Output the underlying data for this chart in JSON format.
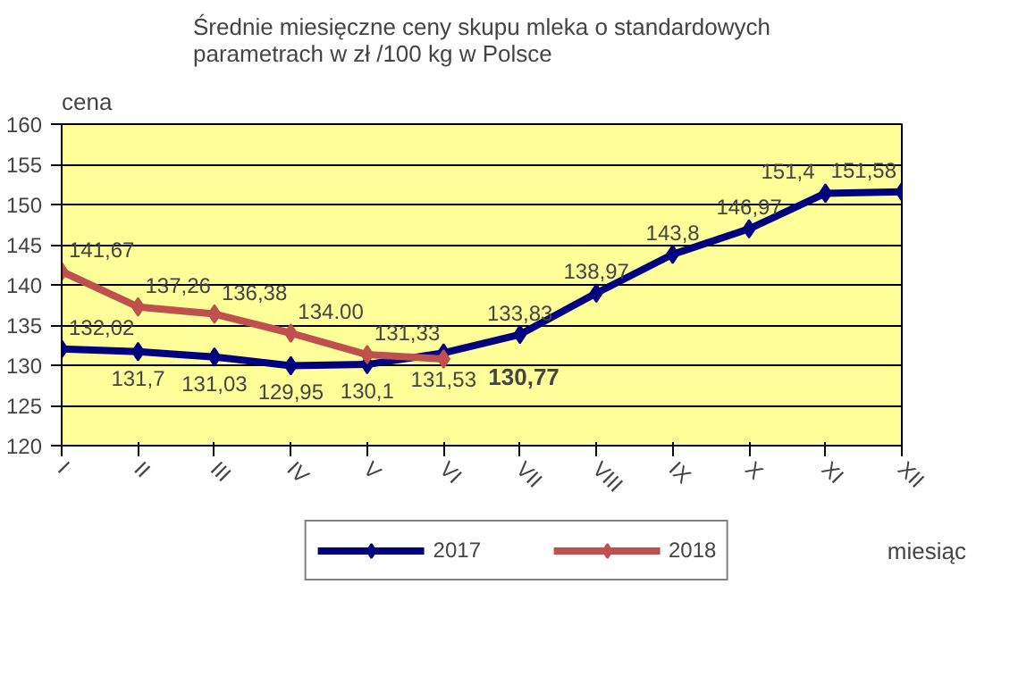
{
  "chart_data": {
    "type": "line",
    "title": "Średnie miesięczne ceny skupu mleka o standardowych\nparametrach w zł /100 kg w Polsce",
    "ylabel": "cena",
    "xlabel": "miesiąc",
    "categories": [
      "I",
      "II",
      "III",
      "IV",
      "V",
      "VI",
      "VII",
      "VIII",
      "IX",
      "X",
      "XI",
      "XII"
    ],
    "series": [
      {
        "name": "2017",
        "color": "#000080",
        "values": [
          132.02,
          131.7,
          131.03,
          129.95,
          130.1,
          131.53,
          133.83,
          138.97,
          143.8,
          146.97,
          151.4,
          151.58
        ],
        "value_labels": [
          "132,02",
          "131,7",
          "131,03",
          "129,95",
          "130,1",
          "131,53",
          "133,83",
          "138,97",
          "143,8",
          "146,97",
          "151,4",
          "151,58"
        ]
      },
      {
        "name": "2018",
        "color": "#c0504d",
        "values": [
          141.67,
          137.26,
          136.38,
          134.0,
          131.33,
          130.77,
          null,
          null,
          null,
          null,
          null,
          null
        ],
        "value_labels": [
          "141,67",
          "137,26",
          "136,38",
          "134.00",
          "131,33",
          "130,77",
          null,
          null,
          null,
          null,
          null,
          null
        ]
      }
    ],
    "ylim": [
      120,
      160
    ],
    "yticks": [
      120,
      125,
      130,
      135,
      140,
      145,
      150,
      155,
      160
    ],
    "grid": "y",
    "legend": "bottom",
    "marker": "diamond",
    "line_style": "solid"
  }
}
